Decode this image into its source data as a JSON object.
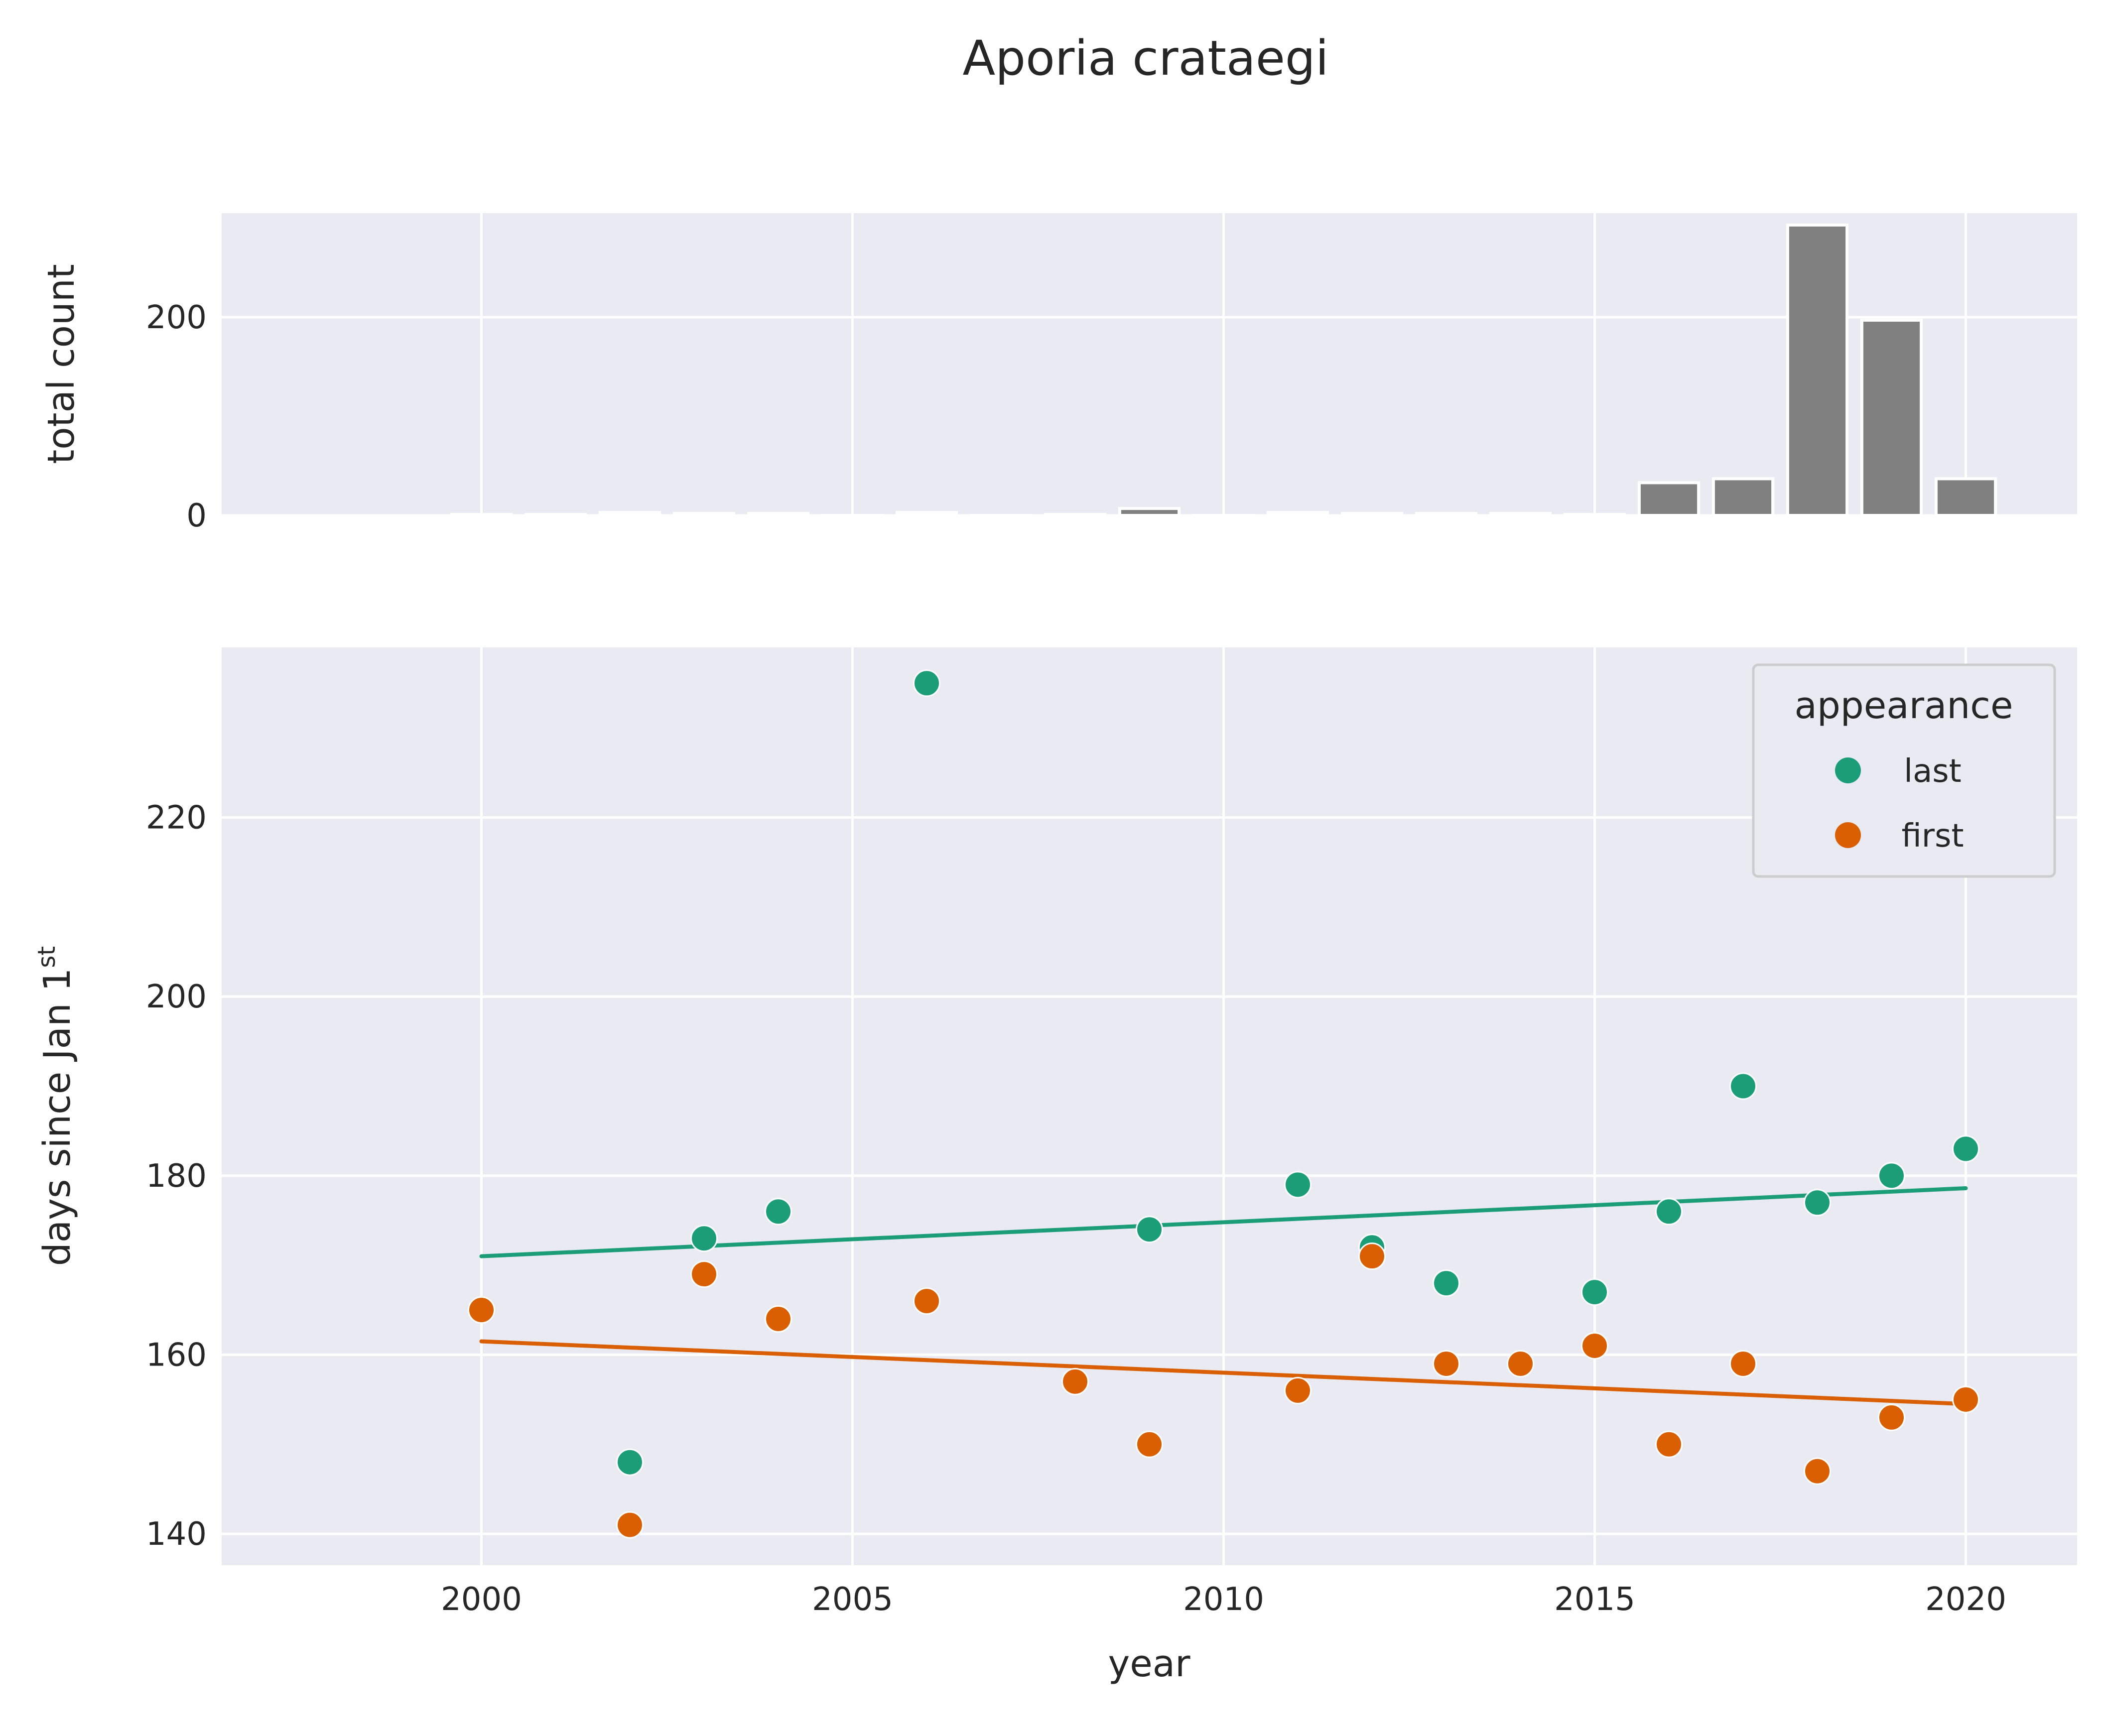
{
  "chart_data": {
    "title": "Aporia crataegi",
    "top_panel": {
      "type": "bar",
      "ylabel": "total count",
      "ylim": [
        0,
        305
      ],
      "yticks": [
        0,
        200
      ],
      "bar_color": "#808080",
      "x": [
        2000,
        2001,
        2002,
        2003,
        2004,
        2005,
        2006,
        2007,
        2008,
        2009,
        2010,
        2011,
        2012,
        2013,
        2014,
        2015,
        2016,
        2017,
        2018,
        2019,
        2020
      ],
      "values": [
        1,
        1,
        3,
        2,
        2,
        0,
        3,
        0,
        1,
        7,
        0,
        3,
        2,
        2,
        2,
        1,
        33,
        37,
        293,
        197,
        37
      ],
      "grid": true
    },
    "bottom_panel": {
      "type": "scatter",
      "xlabel": "year",
      "ylabel_prefix": "days since Jan 1",
      "ylabel_sup": "st",
      "xlim": [
        1996.5,
        2021.5
      ],
      "ylim": [
        136.5,
        239
      ],
      "xticks": [
        2000,
        2005,
        2010,
        2015,
        2020
      ],
      "yticks": [
        140,
        160,
        180,
        200,
        220
      ],
      "grid": true,
      "legend": {
        "title": "appearance",
        "placement": "top-right"
      },
      "series": [
        {
          "name": "last",
          "color": "#1b9e77",
          "x": [
            2002,
            2003,
            2004,
            2006,
            2009,
            2011,
            2012,
            2013,
            2015,
            2016,
            2017,
            2018,
            2019,
            2020
          ],
          "y": [
            148,
            173,
            176,
            235,
            174,
            179,
            172,
            168,
            167,
            176,
            190,
            177,
            180,
            183
          ],
          "trend": {
            "x": [
              2000,
              2020
            ],
            "y": [
              171,
              178.6
            ]
          }
        },
        {
          "name": "first",
          "color": "#d95f02",
          "x": [
            2000,
            2002,
            2003,
            2004,
            2006,
            2008,
            2009,
            2011,
            2012,
            2013,
            2014,
            2015,
            2016,
            2017,
            2018,
            2019,
            2020
          ],
          "y": [
            165,
            141,
            169,
            164,
            166,
            157,
            150,
            156,
            171,
            159,
            159,
            161,
            150,
            159,
            147,
            153,
            155
          ],
          "trend": {
            "x": [
              2000,
              2020
            ],
            "y": [
              161.5,
              154.5
            ]
          }
        }
      ]
    }
  }
}
